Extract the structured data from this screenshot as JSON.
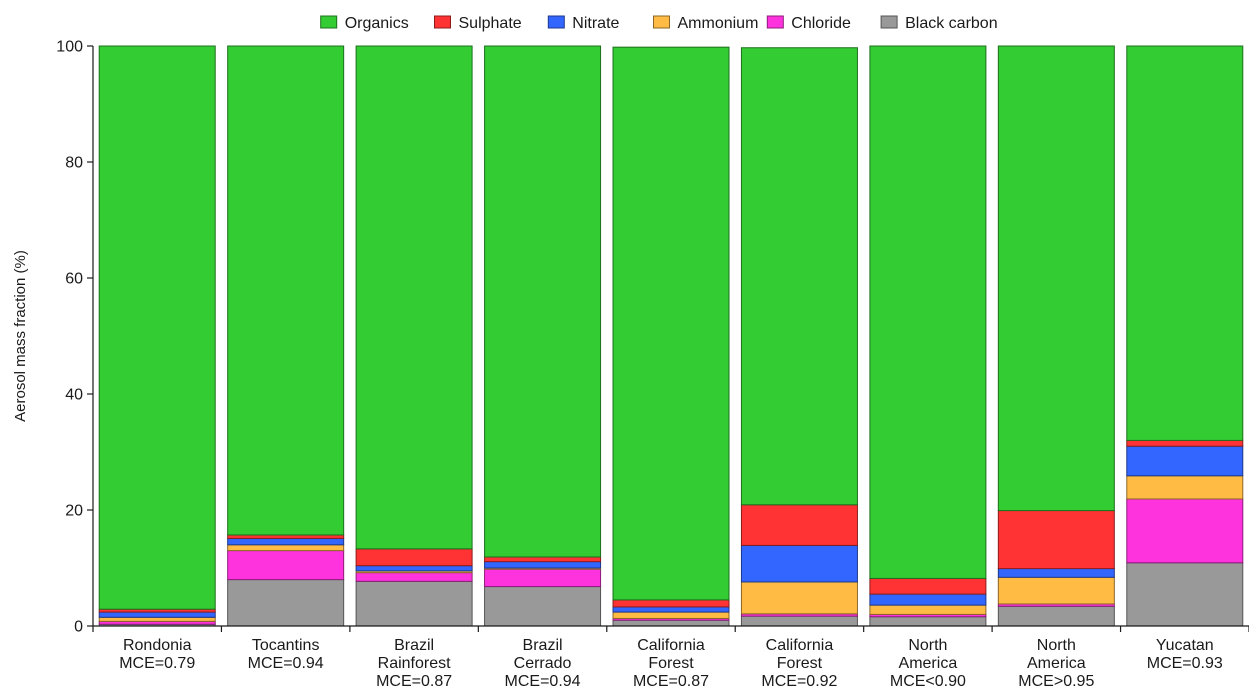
{
  "chart_data": {
    "type": "bar",
    "stacked": true,
    "ylabel": "Aerosol mass fraction (%)",
    "xlabel": "",
    "ylim": [
      0,
      100
    ],
    "yticks": [
      0,
      20,
      40,
      60,
      80,
      100
    ],
    "grid": false,
    "legend_position": "top",
    "categories": [
      "Rondonia\nMCE=0.79",
      "Tocantins\nMCE=0.94",
      "Brazil\nRainforest\nMCE=0.87",
      "Brazil\nCerrado\nMCE=0.94",
      "California\nForest\nMCE=0.87",
      "California\nForest\nMCE=0.92",
      "North\nAmerica\nMCE<0.90",
      "North\nAmerica\nMCE>0.95",
      "Yucatan\nMCE=0.93"
    ],
    "series": [
      {
        "name": "Black carbon",
        "color": "#999999",
        "values": [
          0.3,
          8.0,
          7.7,
          6.8,
          1.0,
          1.7,
          1.6,
          3.4,
          10.9
        ]
      },
      {
        "name": "Chloride",
        "color": "#ff33dd",
        "values": [
          0.5,
          5.0,
          1.5,
          3.0,
          0.3,
          0.4,
          0.4,
          0.4,
          11.0
        ]
      },
      {
        "name": "Ammonium",
        "color": "#ffbb44",
        "values": [
          0.7,
          1.0,
          0.3,
          0.2,
          1.1,
          5.5,
          1.6,
          4.6,
          4.0
        ]
      },
      {
        "name": "Nitrate",
        "color": "#3366ff",
        "values": [
          0.9,
          1.1,
          0.9,
          1.1,
          0.9,
          6.3,
          1.9,
          1.5,
          5.1
        ]
      },
      {
        "name": "Sulphate",
        "color": "#ff3333",
        "values": [
          0.5,
          0.6,
          2.9,
          0.8,
          1.2,
          7.0,
          2.7,
          10.0,
          1.0
        ]
      },
      {
        "name": "Organics",
        "color": "#33cc33",
        "values": [
          97.1,
          84.3,
          86.7,
          88.1,
          95.3,
          78.8,
          91.8,
          80.1,
          68.0
        ]
      }
    ],
    "legend_order": [
      "Organics",
      "Sulphate",
      "Nitrate",
      "Ammonium",
      "Chloride",
      "Black carbon"
    ],
    "colors": {
      "axis": "#1a1a1a",
      "bar_edge_alpha": 0.55
    }
  }
}
